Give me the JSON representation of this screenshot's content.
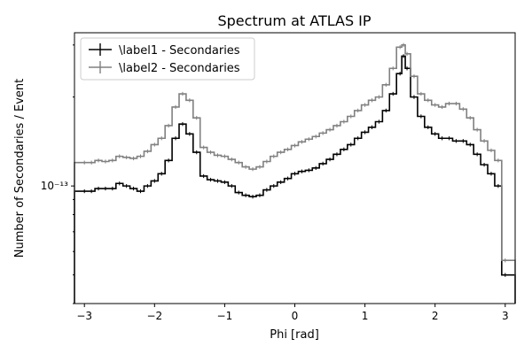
{
  "chart_data": {
    "type": "line",
    "title": "Spectrum at ATLAS IP",
    "xlabel": "Phi [rad]",
    "ylabel": "Number of Secondaries / Event",
    "xlim": [
      -3.1416,
      3.1416
    ],
    "ylim": [
      4e-14,
      3.3e-13
    ],
    "yscale": "log",
    "grid": false,
    "legend_position": "top-left",
    "x_ticks": [
      {
        "value": -3,
        "label": "−3"
      },
      {
        "value": -2,
        "label": "−2"
      },
      {
        "value": -1,
        "label": "−1"
      },
      {
        "value": 0,
        "label": "0"
      },
      {
        "value": 1,
        "label": "1"
      },
      {
        "value": 2,
        "label": "2"
      },
      {
        "value": 3,
        "label": "3"
      }
    ],
    "y_ticks": [
      {
        "value": 1e-13,
        "label": "10⁻¹³"
      }
    ],
    "x": [
      -3.0,
      -2.9,
      -2.8,
      -2.7,
      -2.6,
      -2.5,
      -2.4,
      -2.3,
      -2.2,
      -2.1,
      -2.0,
      -1.9,
      -1.8,
      -1.7,
      -1.6,
      -1.5,
      -1.4,
      -1.3,
      -1.2,
      -1.1,
      -1.0,
      -0.9,
      -0.8,
      -0.7,
      -0.6,
      -0.5,
      -0.4,
      -0.3,
      -0.2,
      -0.1,
      0.0,
      0.1,
      0.2,
      0.3,
      0.4,
      0.5,
      0.6,
      0.7,
      0.8,
      0.9,
      1.0,
      1.1,
      1.2,
      1.3,
      1.4,
      1.5,
      1.55,
      1.6,
      1.7,
      1.8,
      1.9,
      2.0,
      2.1,
      2.2,
      2.3,
      2.4,
      2.5,
      2.6,
      2.7,
      2.8,
      2.9,
      3.0
    ],
    "series": [
      {
        "name": "\\label1 - Secondaries",
        "color": "#000000",
        "values": [
          9.6e-14,
          9.6e-14,
          9.8e-14,
          9.8e-14,
          9.8e-14,
          1.02e-13,
          1e-13,
          9.8e-14,
          9.6e-14,
          1e-13,
          1.04e-13,
          1.1e-13,
          1.22e-13,
          1.45e-13,
          1.62e-13,
          1.5e-13,
          1.3e-13,
          1.08e-13,
          1.05e-13,
          1.04e-13,
          1.03e-13,
          1e-13,
          9.5e-14,
          9.3e-14,
          9.2e-14,
          9.3e-14,
          9.7e-14,
          1e-13,
          1.03e-13,
          1.06e-13,
          1.1e-13,
          1.12e-13,
          1.13e-13,
          1.15e-13,
          1.19e-13,
          1.23e-13,
          1.28e-13,
          1.33e-13,
          1.38e-13,
          1.45e-13,
          1.52e-13,
          1.58e-13,
          1.65e-13,
          1.8e-13,
          2.05e-13,
          2.4e-13,
          2.75e-13,
          2.5e-13,
          2e-13,
          1.72e-13,
          1.58e-13,
          1.5e-13,
          1.45e-13,
          1.45e-13,
          1.42e-13,
          1.42e-13,
          1.38e-13,
          1.28e-13,
          1.18e-13,
          1.1e-13,
          1e-13,
          5e-14
        ]
      },
      {
        "name": "\\label2 - Secondaries",
        "color": "#808080",
        "values": [
          1.2e-13,
          1.2e-13,
          1.22e-13,
          1.21e-13,
          1.22e-13,
          1.26e-13,
          1.25e-13,
          1.24e-13,
          1.26e-13,
          1.31e-13,
          1.38e-13,
          1.45e-13,
          1.6e-13,
          1.85e-13,
          2.05e-13,
          1.95e-13,
          1.7e-13,
          1.35e-13,
          1.3e-13,
          1.27e-13,
          1.26e-13,
          1.23e-13,
          1.2e-13,
          1.16e-13,
          1.14e-13,
          1.16e-13,
          1.21e-13,
          1.26e-13,
          1.3e-13,
          1.33e-13,
          1.37e-13,
          1.41e-13,
          1.44e-13,
          1.47e-13,
          1.51e-13,
          1.55e-13,
          1.6e-13,
          1.65e-13,
          1.72e-13,
          1.8e-13,
          1.88e-13,
          1.95e-13,
          2e-13,
          2.2e-13,
          2.5e-13,
          2.95e-13,
          3e-13,
          2.8e-13,
          2.35e-13,
          2.05e-13,
          1.95e-13,
          1.88e-13,
          1.85e-13,
          1.9e-13,
          1.9e-13,
          1.82e-13,
          1.7e-13,
          1.55e-13,
          1.42e-13,
          1.32e-13,
          1.22e-13,
          5.6e-14
        ]
      }
    ]
  }
}
